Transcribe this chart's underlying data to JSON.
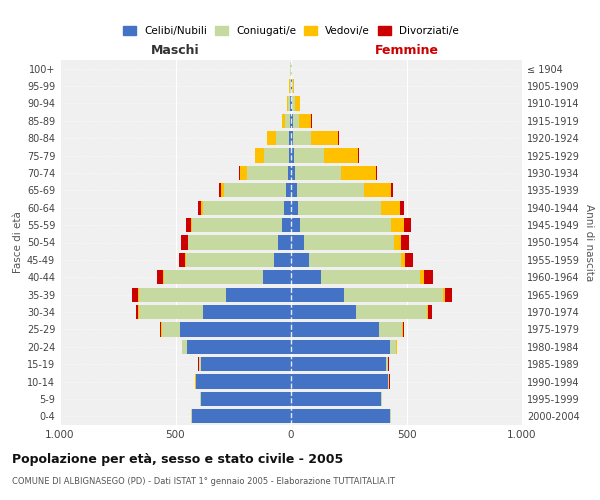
{
  "age_groups": [
    "0-4",
    "5-9",
    "10-14",
    "15-19",
    "20-24",
    "25-29",
    "30-34",
    "35-39",
    "40-44",
    "45-49",
    "50-54",
    "55-59",
    "60-64",
    "65-69",
    "70-74",
    "75-79",
    "80-84",
    "85-89",
    "90-94",
    "95-99",
    "100+"
  ],
  "birth_years": [
    "2000-2004",
    "1995-1999",
    "1990-1994",
    "1985-1989",
    "1980-1984",
    "1975-1979",
    "1970-1974",
    "1965-1969",
    "1960-1964",
    "1955-1959",
    "1950-1954",
    "1945-1949",
    "1940-1944",
    "1935-1939",
    "1930-1934",
    "1925-1929",
    "1920-1924",
    "1915-1919",
    "1910-1914",
    "1905-1909",
    "≤ 1904"
  ],
  "maschi_celibi": [
    430,
    390,
    410,
    390,
    450,
    480,
    380,
    280,
    120,
    75,
    55,
    40,
    30,
    20,
    15,
    10,
    8,
    5,
    3,
    2,
    2
  ],
  "maschi_coniugati": [
    2,
    2,
    3,
    8,
    20,
    80,
    280,
    380,
    430,
    380,
    390,
    390,
    350,
    270,
    175,
    105,
    55,
    20,
    8,
    3,
    2
  ],
  "maschi_vedovi": [
    1,
    1,
    1,
    2,
    2,
    2,
    2,
    2,
    2,
    2,
    3,
    5,
    8,
    15,
    30,
    40,
    40,
    15,
    5,
    2,
    1
  ],
  "maschi_divorziati": [
    1,
    1,
    1,
    1,
    2,
    3,
    10,
    25,
    30,
    30,
    30,
    20,
    15,
    5,
    3,
    2,
    2,
    0,
    0,
    0,
    0
  ],
  "femmine_celibi": [
    430,
    390,
    420,
    410,
    430,
    380,
    280,
    230,
    130,
    80,
    55,
    40,
    30,
    25,
    18,
    12,
    10,
    8,
    5,
    3,
    2
  ],
  "femmine_coniugati": [
    2,
    3,
    4,
    10,
    25,
    100,
    310,
    430,
    430,
    395,
    390,
    395,
    360,
    290,
    200,
    130,
    75,
    25,
    12,
    4,
    2
  ],
  "femmine_vedovi": [
    1,
    2,
    2,
    2,
    2,
    3,
    5,
    8,
    15,
    20,
    30,
    55,
    80,
    120,
    150,
    150,
    120,
    55,
    20,
    5,
    2
  ],
  "femmine_divorziati": [
    1,
    1,
    1,
    1,
    2,
    5,
    15,
    30,
    40,
    35,
    35,
    30,
    20,
    8,
    3,
    2,
    2,
    1,
    0,
    0,
    0
  ],
  "colors": {
    "celibi": "#4472c4",
    "coniugati": "#c5d9a0",
    "vedovi": "#ffc000",
    "divorziati": "#cc0000"
  },
  "title": "Popolazione per età, sesso e stato civile - 2005",
  "subtitle": "COMUNE DI ALBIGNASEGO (PD) - Dati ISTAT 1° gennaio 2005 - Elaborazione TUTTAITALIA.IT",
  "xlabel_left": "Maschi",
  "xlabel_right": "Femmine",
  "ylabel_left": "Fasce di età",
  "ylabel_right": "Anni di nascita",
  "xlim": 1000,
  "background_color": "#ffffff",
  "grid_color": "#cccccc"
}
